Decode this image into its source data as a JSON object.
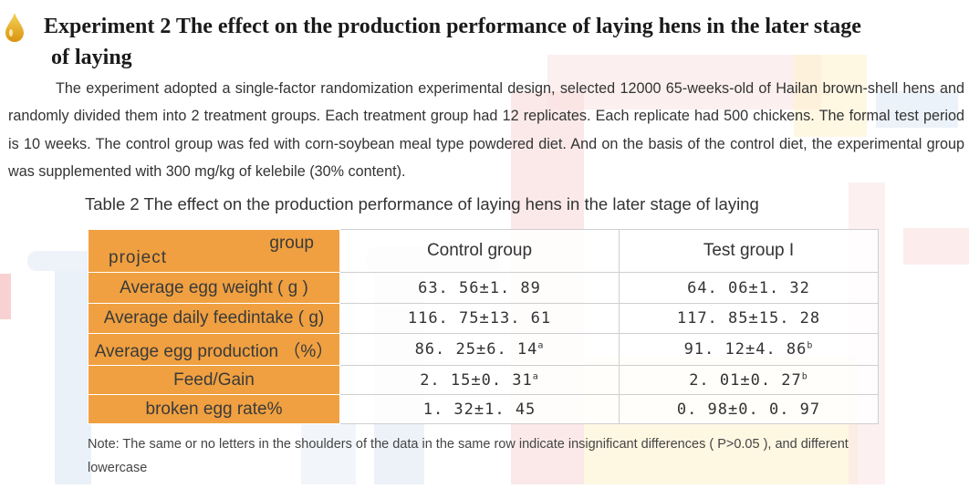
{
  "heading": {
    "line1": "Experiment 2 The effect on the production performance of laying hens in the later stage",
    "line2": "of laying"
  },
  "paragraph": "The experiment adopted a single-factor randomization experimental design, selected 12000 65-weeks-old of Hailan brown-shell hens and randomly divided them into 2 treatment groups. Each treatment group had 12 replicates. Each replicate had 500 chickens. The formal test period is 10 weeks. The control group was fed with corn-soybean meal type powdered diet. And on the basis of the control diet, the experimental group was supplemented with 300 mg/kg of kelebile (30% content).",
  "table": {
    "caption": "Table 2  The effect on the production performance of laying hens in the later stage of laying",
    "corner_group": "group",
    "corner_project": "project",
    "headers": [
      "Control group",
      "Test group I"
    ],
    "rows": [
      {
        "label": "Average egg weight ( g )",
        "control": "63. 56±1. 89",
        "control_sup": "",
        "test": "64. 06±1. 32",
        "test_sup": ""
      },
      {
        "label": "Average daily feedintake ( g)",
        "control": "116. 75±13. 61",
        "control_sup": "",
        "test": "117. 85±15. 28",
        "test_sup": ""
      },
      {
        "label": "Average egg production （%）",
        "control": "86. 25±6. 14",
        "control_sup": "a",
        "test": "91. 12±4. 86",
        "test_sup": "b"
      },
      {
        "label": "Feed/Gain",
        "control": "2. 15±0. 31",
        "control_sup": "a",
        "test": "2. 01±0. 27",
        "test_sup": "b"
      },
      {
        "label": "broken egg rate%",
        "control": "1. 32±1. 45",
        "control_sup": "",
        "test": "0. 98±0. 0. 97",
        "test_sup": ""
      }
    ],
    "note": "Note: The same or no letters in the shoulders of the data in the same row indicate insignificant differences ( P>0.05 ), and different lowercase"
  },
  "colors": {
    "label_fill": "#f0a040",
    "drop_icon": "#f2b61e",
    "watermark_red": "#f5c8c8",
    "watermark_blue": "#d6e3f3",
    "watermark_yellow": "#fbeec4"
  },
  "icons": {
    "bullet": "oil-drop-icon"
  }
}
